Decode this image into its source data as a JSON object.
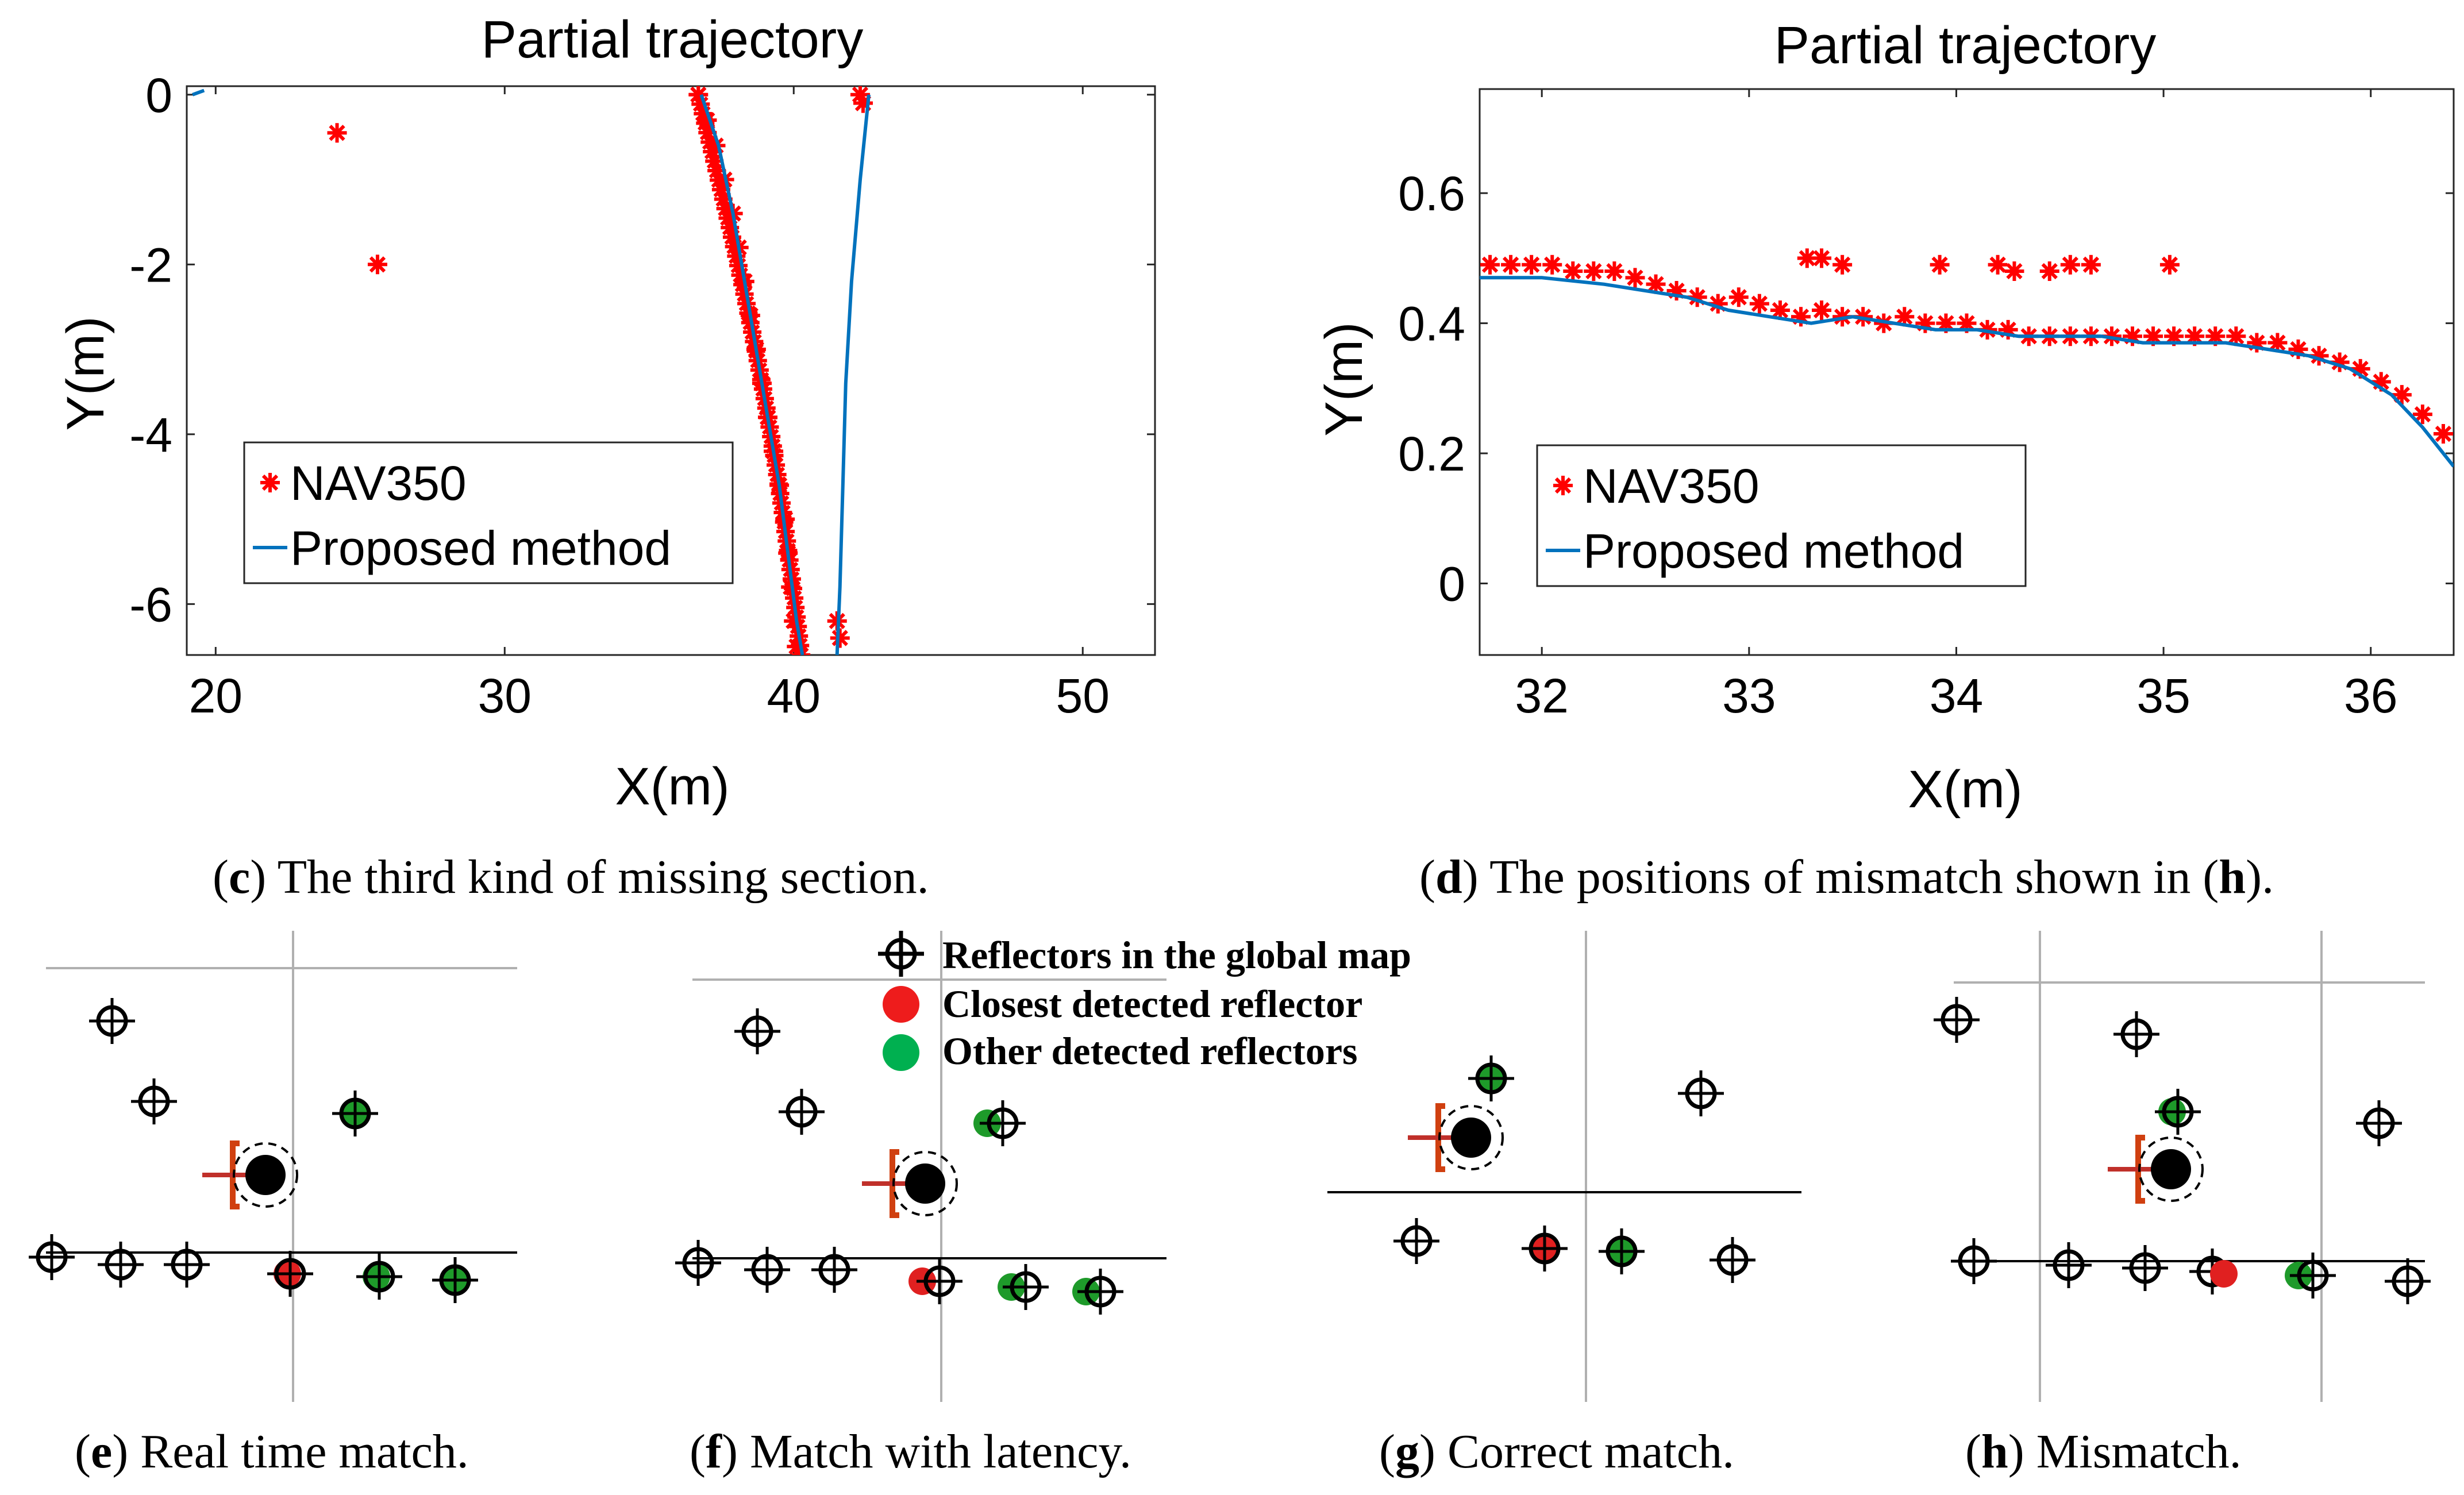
{
  "chart_data": [
    {
      "id": "c",
      "type": "line",
      "title": "Partial trajectory",
      "xlabel": "X(m)",
      "ylabel": "Y(m)",
      "xlim": [
        19,
        52.5
      ],
      "ylim": [
        -6.6,
        0.1
      ],
      "xticks": [
        20,
        30,
        40,
        50
      ],
      "yticks": [
        0,
        -2,
        -4,
        -6
      ],
      "ytick_labels": [
        "0",
        "-2",
        "-4",
        "-6"
      ],
      "legend": {
        "position": "bottom-left",
        "entries": [
          "NAV350",
          "Proposed method"
        ]
      },
      "series": [
        {
          "name": "NAV350",
          "marker": "asterisk",
          "color": "#ff0000",
          "points": [
            [
              24.2,
              -0.45
            ],
            [
              25.6,
              -2.0
            ],
            [
              36.7,
              0.0
            ],
            [
              37.0,
              -0.3
            ],
            [
              37.3,
              -0.6
            ],
            [
              37.6,
              -1.0
            ],
            [
              37.9,
              -1.4
            ],
            [
              38.1,
              -1.8
            ],
            [
              38.3,
              -2.2
            ],
            [
              38.5,
              -2.6
            ],
            [
              38.7,
              -3.0
            ],
            [
              38.9,
              -3.4
            ],
            [
              39.1,
              -3.8
            ],
            [
              39.3,
              -4.2
            ],
            [
              39.5,
              -4.6
            ],
            [
              39.7,
              -5.0
            ],
            [
              39.8,
              -5.4
            ],
            [
              39.9,
              -5.8
            ],
            [
              40.0,
              -6.2
            ],
            [
              40.1,
              -6.5
            ],
            [
              42.3,
              0.0
            ],
            [
              42.4,
              -0.1
            ],
            [
              41.5,
              -6.2
            ],
            [
              41.6,
              -6.4
            ]
          ]
        },
        {
          "name": "Proposed method",
          "color": "#0072bd",
          "segments": [
            [
              [
                19.2,
                0.0
              ],
              [
                19.6,
                0.05
              ]
            ],
            [
              [
                36.8,
                0.0
              ],
              [
                37.4,
                -0.6
              ],
              [
                37.9,
                -1.4
              ],
              [
                38.3,
                -2.2
              ],
              [
                38.7,
                -3.0
              ],
              [
                39.1,
                -3.8
              ],
              [
                39.5,
                -4.6
              ],
              [
                39.8,
                -5.4
              ],
              [
                40.1,
                -6.2
              ],
              [
                40.3,
                -6.6
              ]
            ],
            [
              [
                42.6,
                0.0
              ],
              [
                42.3,
                -1.0
              ],
              [
                42.0,
                -2.2
              ],
              [
                41.8,
                -3.4
              ],
              [
                41.7,
                -4.6
              ],
              [
                41.6,
                -5.8
              ],
              [
                41.5,
                -6.6
              ]
            ]
          ]
        }
      ]
    },
    {
      "id": "d",
      "type": "line",
      "title": "Partial trajectory",
      "xlabel": "X(m)",
      "ylabel": "Y(m)",
      "xlim": [
        31.7,
        36.4
      ],
      "ylim": [
        -0.11,
        0.76
      ],
      "xticks": [
        32,
        33,
        34,
        35,
        36
      ],
      "yticks": [
        0,
        0.2,
        0.4,
        0.6
      ],
      "ytick_labels": [
        "0",
        "0.2",
        "0.4",
        "0.6"
      ],
      "legend": {
        "position": "bottom-left",
        "entries": [
          "NAV350",
          "Proposed method"
        ]
      },
      "series": [
        {
          "name": "NAV350",
          "marker": "asterisk",
          "color": "#ff0000",
          "points": [
            [
              31.75,
              0.49
            ],
            [
              31.85,
              0.49
            ],
            [
              31.95,
              0.49
            ],
            [
              32.05,
              0.49
            ],
            [
              32.15,
              0.48
            ],
            [
              32.25,
              0.48
            ],
            [
              32.35,
              0.48
            ],
            [
              32.45,
              0.47
            ],
            [
              32.55,
              0.46
            ],
            [
              32.65,
              0.45
            ],
            [
              32.75,
              0.44
            ],
            [
              32.85,
              0.43
            ],
            [
              32.95,
              0.44
            ],
            [
              33.05,
              0.43
            ],
            [
              33.15,
              0.42
            ],
            [
              33.25,
              0.41
            ],
            [
              33.35,
              0.42
            ],
            [
              33.45,
              0.41
            ],
            [
              33.55,
              0.41
            ],
            [
              33.65,
              0.4
            ],
            [
              33.75,
              0.41
            ],
            [
              33.85,
              0.4
            ],
            [
              33.95,
              0.4
            ],
            [
              34.05,
              0.4
            ],
            [
              34.15,
              0.39
            ],
            [
              34.25,
              0.39
            ],
            [
              34.35,
              0.38
            ],
            [
              34.45,
              0.38
            ],
            [
              34.55,
              0.38
            ],
            [
              34.65,
              0.38
            ],
            [
              34.75,
              0.38
            ],
            [
              34.85,
              0.38
            ],
            [
              34.95,
              0.38
            ],
            [
              35.05,
              0.38
            ],
            [
              35.15,
              0.38
            ],
            [
              35.25,
              0.38
            ],
            [
              35.35,
              0.38
            ],
            [
              35.45,
              0.37
            ],
            [
              35.55,
              0.37
            ],
            [
              35.65,
              0.36
            ],
            [
              35.75,
              0.35
            ],
            [
              35.85,
              0.34
            ],
            [
              35.95,
              0.33
            ],
            [
              36.05,
              0.31
            ],
            [
              36.15,
              0.29
            ],
            [
              36.25,
              0.26
            ],
            [
              36.35,
              0.23
            ],
            [
              33.28,
              0.5
            ],
            [
              33.35,
              0.5
            ],
            [
              33.45,
              0.49
            ],
            [
              33.92,
              0.49
            ],
            [
              34.2,
              0.49
            ],
            [
              34.28,
              0.48
            ],
            [
              34.45,
              0.48
            ],
            [
              34.55,
              0.49
            ],
            [
              34.65,
              0.49
            ],
            [
              35.03,
              0.49
            ]
          ]
        },
        {
          "name": "Proposed method",
          "color": "#0072bd",
          "segments": [
            [
              [
                31.7,
                0.47
              ],
              [
                32.0,
                0.47
              ],
              [
                32.3,
                0.46
              ],
              [
                32.5,
                0.45
              ],
              [
                32.7,
                0.44
              ],
              [
                32.9,
                0.42
              ],
              [
                33.1,
                0.41
              ],
              [
                33.3,
                0.4
              ],
              [
                33.5,
                0.41
              ],
              [
                33.7,
                0.4
              ],
              [
                33.9,
                0.39
              ],
              [
                34.1,
                0.39
              ],
              [
                34.3,
                0.38
              ],
              [
                34.5,
                0.38
              ],
              [
                34.7,
                0.38
              ],
              [
                34.9,
                0.37
              ],
              [
                35.1,
                0.37
              ],
              [
                35.3,
                0.37
              ],
              [
                35.5,
                0.36
              ],
              [
                35.7,
                0.35
              ],
              [
                35.9,
                0.33
              ],
              [
                36.1,
                0.29
              ],
              [
                36.25,
                0.24
              ],
              [
                36.4,
                0.18
              ]
            ]
          ]
        }
      ]
    }
  ],
  "captions": {
    "c": {
      "letter": "c",
      "text": " The third kind of missing section."
    },
    "d": {
      "letter": "d",
      "text": " The positions of mismatch shown in (",
      "ref": "h",
      "tail": ")."
    },
    "e": {
      "letter": "e",
      "text": " Real time match."
    },
    "f": {
      "letter": "f",
      "text": " Match with latency."
    },
    "g": {
      "letter": "g",
      "text": " Correct match."
    },
    "h": {
      "letter": "h",
      "text": " Mismatch."
    }
  },
  "match_legend": {
    "entries": [
      {
        "label": "Reflectors in the global map",
        "symbol": "crosshair"
      },
      {
        "label": "Closest detected reflector",
        "symbol": "dot",
        "color": "#ff0000"
      },
      {
        "label": "Other detected reflectors",
        "symbol": "dot",
        "color": "#00b050"
      }
    ]
  },
  "colors": {
    "nav": "#ff0000",
    "method": "#0072bd",
    "green": "#1e9a2a",
    "red": "#e02020",
    "grid": "#b0b0b0"
  }
}
